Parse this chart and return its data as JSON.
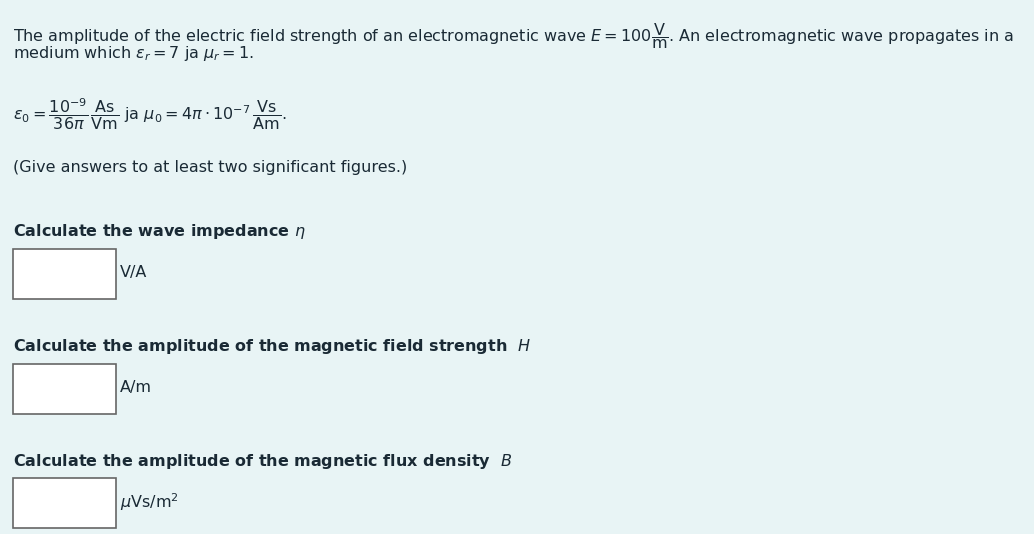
{
  "bg_color": "#e8f4f5",
  "text_color": "#1a2a35",
  "fig_width": 10.34,
  "fig_height": 5.34,
  "give_answers": "(Give answers to at least two significant figures.)",
  "q1_unit": "V/A",
  "q2_unit": "A/m",
  "q3_unit": "$\\mu$Vs/m$^2$"
}
